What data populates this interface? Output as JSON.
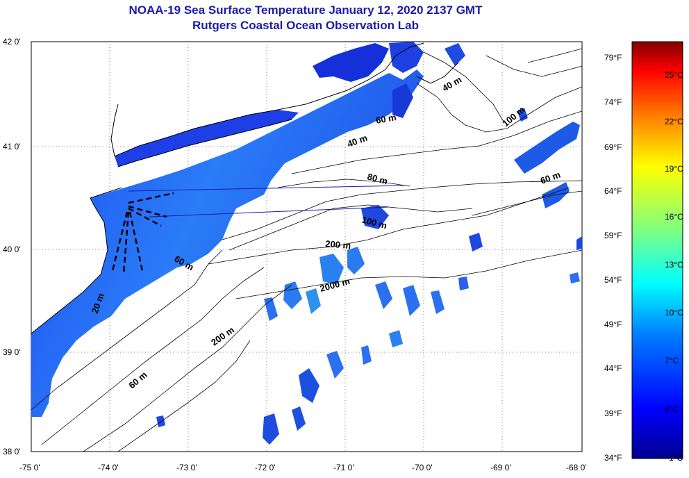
{
  "title": "NOAA-19 Sea Surface Temperature January 12, 2020 2137 GMT",
  "subtitle": "Rutgers Coastal Ocean Observation Lab",
  "lat_ticks": [
    "42 0'",
    "41 0'",
    "40 0'",
    "39 0'",
    "38 0'"
  ],
  "lon_ticks": [
    "-75 0'",
    "-74 0'",
    "-73 0'",
    "-72 0'",
    "-71 0'",
    "-70 0'",
    "-69 0'",
    "-68 0'"
  ],
  "colorbar": {
    "fahrenheit": [
      "79°F",
      "74°F",
      "69°F",
      "64°F",
      "59°F",
      "54°F",
      "49°F",
      "44°F",
      "39°F",
      "34°F"
    ],
    "celsius": [
      "25°C",
      "22°C",
      "19°C",
      "16°C",
      "13°C",
      "10°C",
      "7°C",
      "4°C",
      "1°C"
    ],
    "colors": [
      "#7f0000",
      "#ff0000",
      "#ff8000",
      "#ffff00",
      "#80ff80",
      "#00ffff",
      "#0080ff",
      "#0000ff",
      "#00008f"
    ]
  },
  "contour_labels": [
    "40 m",
    "40 m",
    "100 m",
    "60 m",
    "80 m",
    "100 m",
    "60 m",
    "200 m",
    "60 m",
    "2000 m",
    "20 m",
    "200 m",
    "60 m"
  ],
  "colors": {
    "title": "#1a1aa8",
    "sst_dark": "#1030e0",
    "sst_light": "#30a0ff"
  }
}
